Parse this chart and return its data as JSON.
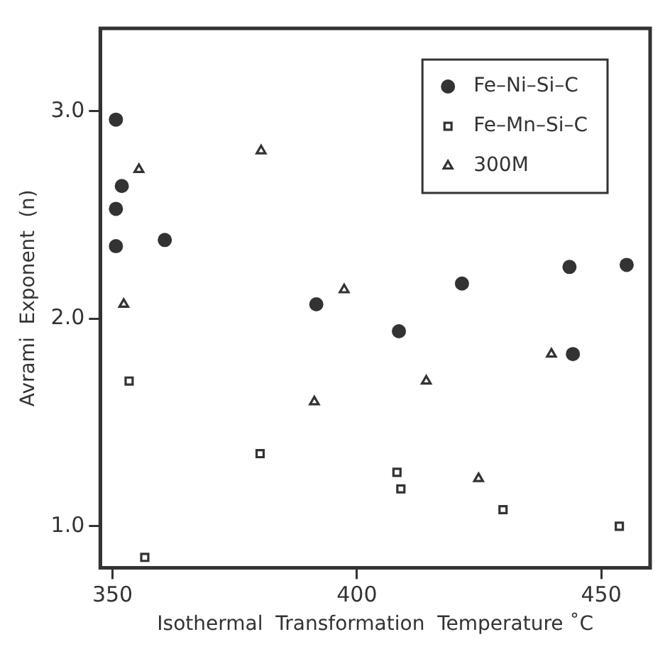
{
  "chart_data": {
    "type": "scatter",
    "xlabel": "Isothermal  Transformation  Temperature ˚C",
    "ylabel": "Avrami  Exponent  (n)",
    "xlim": [
      347.5,
      460
    ],
    "ylim": [
      0.8,
      3.4
    ],
    "xticks": [
      350,
      400,
      450
    ],
    "yticks": [
      {
        "value": 1,
        "label": "1.0"
      },
      {
        "value": 2,
        "label": "2.0"
      },
      {
        "value": 3,
        "label": "3.0"
      }
    ],
    "grid": false,
    "legend": "top right",
    "series": [
      {
        "name": "Fe–Ni–Si–C",
        "color": "#333333",
        "marker": "circle",
        "x": [
          350.7,
          351.9,
          350.7,
          350.7,
          360.7,
          391.7,
          408.6,
          421.5,
          443.5,
          444.2,
          455.2
        ],
        "values": [
          2.96,
          2.64,
          2.53,
          2.35,
          2.38,
          2.07,
          1.94,
          2.17,
          2.25,
          1.83,
          2.26
        ]
      },
      {
        "name": "Fe–Mn–Si–C",
        "color": "#333333",
        "marker": "square",
        "x": [
          353.4,
          356.6,
          380.2,
          408.2,
          409.0,
          429.9,
          453.7
        ],
        "values": [
          1.7,
          0.85,
          1.35,
          1.26,
          1.18,
          1.08,
          1.0
        ]
      },
      {
        "name": "300M",
        "color": "#333333",
        "marker": "triangle",
        "x": [
          355.4,
          352.3,
          380.4,
          397.4,
          391.3,
          414.2,
          424.9,
          439.8
        ],
        "values": [
          2.72,
          2.07,
          2.81,
          2.14,
          1.6,
          1.7,
          1.23,
          1.83
        ]
      }
    ]
  }
}
